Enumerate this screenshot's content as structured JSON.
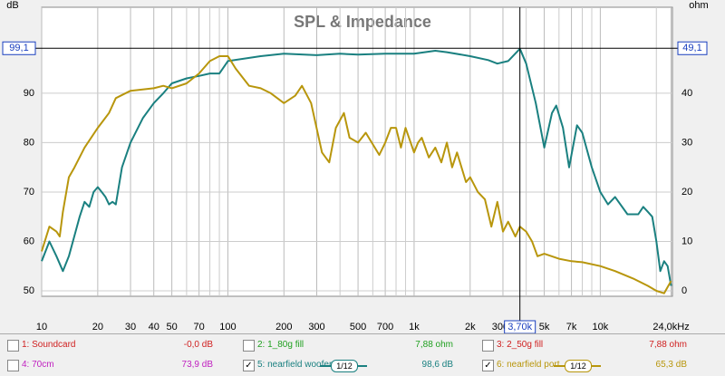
{
  "chart_data": {
    "type": "line",
    "title": "SPL & Impedance",
    "y_label": "dB",
    "y2_label": "ohm",
    "log_x": true,
    "grid": true,
    "xlim": [
      10,
      24400
    ],
    "ylim": [
      48.9,
      107.4
    ],
    "y2lim": [
      -1.1,
      57.4
    ],
    "xticks": [
      10,
      20,
      30,
      40,
      50,
      70,
      100,
      200,
      300,
      500,
      700,
      {
        "value": 1000,
        "label": "1k"
      },
      {
        "value": 2000,
        "label": "2k"
      },
      3000,
      {
        "value": 5000,
        "label": "5k"
      },
      {
        "value": 7000,
        "label": "7k"
      },
      {
        "value": 10000,
        "label": "10k"
      },
      {
        "value": 24000,
        "label": "24,0kHz"
      }
    ],
    "xminor": [
      60,
      80,
      90,
      400,
      600,
      800,
      900,
      4000,
      6000,
      8000,
      9000,
      20000
    ],
    "yticks": [
      50,
      60,
      70,
      80,
      90
    ],
    "y2ticks": [
      0,
      10,
      20,
      30,
      40
    ],
    "cursor": {
      "x": {
        "value": 3700,
        "label": "3,70k"
      },
      "y": {
        "value": 99.1,
        "label": "99,1"
      },
      "y2": {
        "value": 49.1,
        "label": "49,1"
      }
    },
    "series": [
      {
        "name": "5: nearfield woofer",
        "color": "#1a8080",
        "x": [
          10,
          11,
          12,
          13,
          14,
          16,
          17,
          18,
          19,
          20,
          21,
          22,
          23,
          24,
          25,
          27,
          30,
          35,
          40,
          45,
          50,
          60,
          70,
          80,
          90,
          100,
          150,
          200,
          300,
          400,
          500,
          700,
          1000,
          1300,
          1500,
          2000,
          2500,
          2800,
          3200,
          3700,
          4000,
          4500,
          5000,
          5500,
          5800,
          6300,
          6800,
          7500,
          8000,
          9000,
          10000,
          11000,
          12000,
          14000,
          16000,
          17000,
          18000,
          19000,
          20000,
          21000,
          22000,
          23000,
          24000
        ],
        "values": [
          56,
          60,
          57,
          54,
          57,
          65,
          68,
          67,
          70,
          71,
          70,
          69,
          67.5,
          68,
          67.5,
          75,
          80,
          85,
          88,
          90,
          92,
          93,
          93.5,
          94,
          94,
          96.5,
          97.5,
          98,
          97.7,
          98,
          97.8,
          98,
          98,
          98.6,
          98.3,
          97.5,
          96.7,
          96,
          96.5,
          99,
          96,
          88,
          79,
          86,
          87.5,
          83,
          75,
          83.5,
          82,
          75,
          70,
          67.5,
          69,
          65.5,
          65.5,
          67,
          66,
          65,
          60,
          54,
          56,
          55,
          51
        ]
      },
      {
        "name": "6: nearfield port",
        "color": "#b8960c",
        "x": [
          10,
          11,
          12,
          12.5,
          13,
          14,
          15,
          17,
          20,
          23,
          25,
          30,
          40,
          45,
          50,
          60,
          70,
          80,
          90,
          100,
          110,
          130,
          150,
          170,
          200,
          230,
          250,
          280,
          320,
          350,
          380,
          420,
          450,
          500,
          550,
          650,
          700,
          750,
          800,
          850,
          900,
          1000,
          1050,
          1100,
          1200,
          1300,
          1400,
          1500,
          1600,
          1700,
          1900,
          2000,
          2200,
          2400,
          2600,
          2800,
          3000,
          3200,
          3500,
          3700,
          4000,
          4300,
          4600,
          5000,
          6000,
          7000,
          8000,
          10000,
          12000,
          15000,
          18000,
          20000,
          22000,
          24000
        ],
        "values": [
          58,
          63,
          62,
          61,
          66,
          73,
          75,
          79,
          83,
          86,
          89,
          90.5,
          91,
          91.5,
          91,
          92,
          94,
          96.5,
          97.5,
          97.5,
          95,
          91.5,
          91,
          90,
          88,
          89.5,
          91.5,
          88,
          78,
          76,
          83,
          86,
          81,
          80,
          82,
          77.5,
          80,
          83,
          83,
          79,
          83,
          78,
          80,
          81,
          77,
          79,
          76,
          80,
          75,
          78,
          72,
          73,
          70,
          68.5,
          63,
          68,
          62,
          64,
          61,
          63,
          62,
          60,
          57,
          57.5,
          56.5,
          56,
          55.8,
          55,
          54,
          52.5,
          51,
          50,
          49.5,
          52
        ]
      }
    ]
  },
  "legend": [
    {
      "label": "1: Soundcard",
      "color": "#d02020",
      "checked": false,
      "value": "-0,0 dB"
    },
    {
      "label": "2: 1_80g fill",
      "color": "#20a020",
      "checked": false,
      "value": "7,88 ohm"
    },
    {
      "label": "3: 2_50g fill",
      "color": "#d02020",
      "checked": false,
      "value": "7,88 ohm"
    },
    {
      "label": "4: 70cm",
      "color": "#c020c0",
      "checked": false,
      "value": "73,9 dB"
    },
    {
      "label": "5: nearfield woofer",
      "color": "#1a8080",
      "checked": true,
      "smoothing": "1/12",
      "value": "98,6 dB"
    },
    {
      "label": "6: nearfield port",
      "color": "#b8960c",
      "checked": true,
      "smoothing": "1/12",
      "value": "65,3 dB"
    }
  ]
}
